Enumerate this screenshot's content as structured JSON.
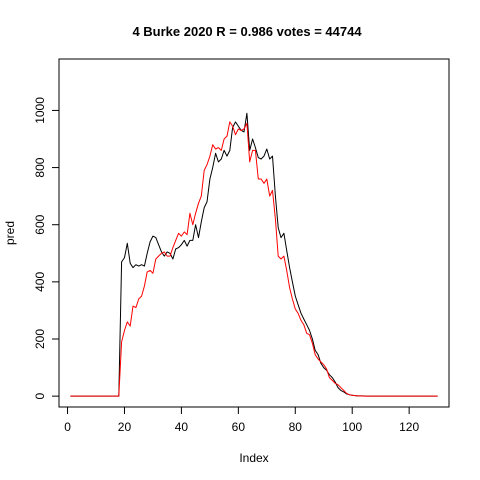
{
  "chart_data": {
    "type": "line",
    "title": "4 Burke 2020 R = 0.986 votes = 44744",
    "xlabel": "Index",
    "ylabel": "pred",
    "xlim": [
      -3,
      134
    ],
    "ylim": [
      -38,
      1180
    ],
    "x_ticks": [
      0,
      20,
      40,
      60,
      80,
      100,
      120
    ],
    "y_ticks": [
      0,
      200,
      400,
      600,
      800,
      1000
    ],
    "colors": {
      "series_1": "#000000",
      "series_2": "#ff0000",
      "frame": "#000000"
    },
    "series": [
      {
        "values": [
          0,
          0,
          0,
          0,
          0,
          0,
          0,
          0,
          0,
          0,
          0,
          0,
          0,
          0,
          0,
          0,
          0,
          0,
          470,
          485,
          535,
          465,
          450,
          460,
          455,
          460,
          455,
          500,
          540,
          560,
          555,
          530,
          505,
          490,
          505,
          500,
          480,
          515,
          520,
          530,
          545,
          525,
          545,
          545,
          600,
          555,
          610,
          660,
          680,
          760,
          800,
          850,
          820,
          830,
          860,
          840,
          860,
          940,
          960,
          945,
          930,
          925,
          990,
          860,
          900,
          870,
          835,
          830,
          840,
          865,
          830,
          840,
          700,
          590,
          555,
          570,
          510,
          450,
          400,
          350,
          320,
          290,
          270,
          250,
          230,
          200,
          160,
          145,
          115,
          100,
          90,
          75,
          65,
          50,
          30,
          20,
          15,
          8,
          5,
          3,
          2,
          1,
          1,
          1,
          0,
          0,
          0,
          0,
          0,
          0,
          0,
          0,
          0,
          0,
          0,
          0,
          0,
          0,
          0,
          0,
          0,
          0,
          0,
          0,
          0,
          0,
          0,
          0,
          0,
          0
        ]
      },
      {
        "values": [
          0,
          0,
          0,
          0,
          0,
          0,
          0,
          0,
          0,
          0,
          0,
          0,
          0,
          0,
          0,
          0,
          0,
          0,
          190,
          230,
          260,
          245,
          315,
          310,
          340,
          350,
          385,
          435,
          440,
          430,
          480,
          490,
          500,
          505,
          490,
          490,
          520,
          545,
          570,
          560,
          575,
          565,
          640,
          600,
          640,
          675,
          700,
          790,
          810,
          840,
          880,
          865,
          870,
          860,
          900,
          910,
          960,
          945,
          915,
          935,
          930,
          935,
          955,
          820,
          860,
          860,
          760,
          760,
          745,
          760,
          700,
          720,
          620,
          490,
          480,
          490,
          440,
          380,
          340,
          305,
          290,
          265,
          250,
          220,
          215,
          185,
          145,
          130,
          120,
          110,
          95,
          65,
          55,
          45,
          40,
          30,
          20,
          10,
          5,
          3,
          2,
          1,
          1,
          0,
          0,
          0,
          0,
          0,
          0,
          0,
          0,
          0,
          0,
          0,
          0,
          0,
          0,
          0,
          0,
          0,
          0,
          0,
          0,
          0,
          0,
          0,
          0,
          0,
          0,
          0
        ]
      }
    ]
  }
}
